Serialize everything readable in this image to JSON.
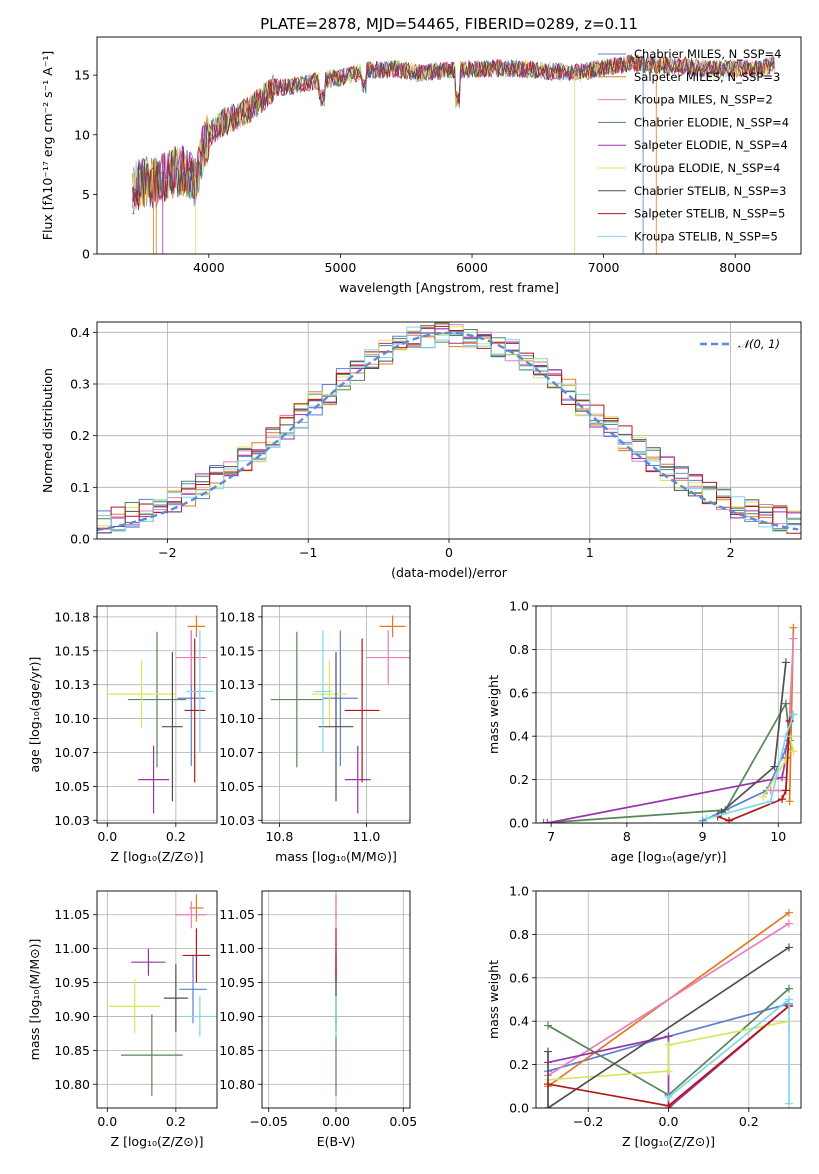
{
  "colors": [
    "#5b7fd6",
    "#e07b24",
    "#e87ec0",
    "#56865a",
    "#9933aa",
    "#d6e85a",
    "#505050",
    "#b31818",
    "#7fd8e6"
  ],
  "figure_title": "PLATE=2878, MJD=54465, FIBERID=0289, z=0.11",
  "chart_data": [
    {
      "type": "line",
      "id": "spectrum",
      "xlabel": "wavelength [Angstrom, rest frame]",
      "ylabel": "Flux [fλ10⁻¹⁷ erg cm⁻² s⁻¹ A⁻¹]",
      "xlim": [
        3150,
        8500
      ],
      "ylim": [
        0,
        18.2
      ],
      "xticks": [
        4000,
        5000,
        6000,
        7000,
        8000
      ],
      "yticks": [
        0,
        5,
        10,
        15
      ],
      "series": [
        {
          "name": "Chabrier MILES, N_SSP=4"
        },
        {
          "name": "Salpeter MILES, N_SSP=3"
        },
        {
          "name": "Kroupa MILES, N_SSP=2"
        },
        {
          "name": "Chabrier ELODIE, N_SSP=4"
        },
        {
          "name": "Salpeter ELODIE, N_SSP=4"
        },
        {
          "name": "Kroupa ELODIE, N_SSP=4"
        },
        {
          "name": "Chabrier STELIB, N_SSP=3"
        },
        {
          "name": "Salpeter STELIB, N_SSP=5"
        },
        {
          "name": "Kroupa STELIB, N_SSP=5"
        }
      ],
      "continuum": {
        "x": [
          3420,
          3500,
          3600,
          3700,
          3800,
          3900,
          3950,
          4000,
          4100,
          4200,
          4300,
          4400,
          4500,
          4600,
          4800,
          5000,
          5200,
          5400,
          5600,
          5800,
          6000,
          6200,
          6400,
          6600,
          6800,
          7000,
          7200,
          7400,
          7600,
          7800,
          8000,
          8200,
          8300
        ],
        "y": [
          5.5,
          6.0,
          6.0,
          6.8,
          7.0,
          6.0,
          8.5,
          10.0,
          11.0,
          11.5,
          12.0,
          13.0,
          14.0,
          14.0,
          14.5,
          14.8,
          15.4,
          15.5,
          15.2,
          15.4,
          15.5,
          15.6,
          15.5,
          15.3,
          15.2,
          15.6,
          16.0,
          15.8,
          15.8,
          15.5,
          15.6,
          15.5,
          16.0
        ]
      }
    },
    {
      "type": "line",
      "id": "residuals",
      "xlabel": "(data-model)/error",
      "ylabel": "Normed distribution",
      "xlim": [
        -2.5,
        2.5
      ],
      "ylim": [
        0,
        0.42
      ],
      "xticks": [
        -2,
        -1,
        0,
        1,
        2
      ],
      "yticks": [
        0.0,
        0.1,
        0.2,
        0.3,
        0.4
      ],
      "legend": "𝒩(0, 1)",
      "series_note": "9 step histograms following the normal curve"
    },
    {
      "type": "scatter",
      "id": "age-vs-Z",
      "xlabel": "Z [log₁₀(Z/Z⊙)]",
      "ylabel": "age  [log₁₀(age/yr)]",
      "xlim": [
        -0.03,
        0.32
      ],
      "ylim": [
        10.023,
        10.183
      ],
      "xticks": [
        0.0,
        0.2
      ],
      "yticks": [
        10.025,
        10.05,
        10.075,
        10.1,
        10.125,
        10.15,
        10.175
      ],
      "points": [
        {
          "c": 0,
          "x": 0.245,
          "xerr": 0.04,
          "y": 10.115,
          "yerr": 0.05
        },
        {
          "c": 1,
          "x": 0.26,
          "xerr": 0.025,
          "y": 10.168,
          "yerr": 0.008
        },
        {
          "c": 2,
          "x": 0.245,
          "xerr": 0.045,
          "y": 10.145,
          "yerr": 0.02
        },
        {
          "c": 3,
          "x": 0.145,
          "xerr": 0.085,
          "y": 10.114,
          "yerr": 0.05
        },
        {
          "c": 4,
          "x": 0.135,
          "xerr": 0.045,
          "y": 10.055,
          "yerr": 0.025
        },
        {
          "c": 5,
          "x": 0.1,
          "xerr": 0.1,
          "y": 10.118,
          "yerr": 0.025
        },
        {
          "c": 6,
          "x": 0.19,
          "xerr": 0.03,
          "y": 10.094,
          "yerr": 0.055
        },
        {
          "c": 7,
          "x": 0.255,
          "xerr": 0.03,
          "y": 10.106,
          "yerr": 0.053
        },
        {
          "c": 8,
          "x": 0.27,
          "xerr": 0.04,
          "y": 10.12,
          "yerr": 0.045
        }
      ]
    },
    {
      "type": "scatter",
      "id": "age-vs-mass",
      "xlabel": "mass [log₁₀(M/M⊙)]",
      "xlim": [
        10.76,
        11.1
      ],
      "ylim": [
        10.023,
        10.183
      ],
      "xticks": [
        10.8,
        11.0
      ],
      "yticks": [
        10.025,
        10.05,
        10.075,
        10.1,
        10.125,
        10.15,
        10.175
      ],
      "points": [
        {
          "c": 0,
          "x": 10.94,
          "xerr": 0.04,
          "y": 10.115,
          "yerr": 0.05
        },
        {
          "c": 1,
          "x": 11.06,
          "xerr": 0.03,
          "y": 10.168,
          "yerr": 0.008
        },
        {
          "c": 2,
          "x": 11.05,
          "xerr": 0.05,
          "y": 10.145,
          "yerr": 0.02
        },
        {
          "c": 3,
          "x": 10.84,
          "xerr": 0.06,
          "y": 10.114,
          "yerr": 0.05
        },
        {
          "c": 4,
          "x": 10.98,
          "xerr": 0.03,
          "y": 10.055,
          "yerr": 0.025
        },
        {
          "c": 5,
          "x": 10.915,
          "xerr": 0.04,
          "y": 10.118,
          "yerr": 0.025
        },
        {
          "c": 6,
          "x": 10.93,
          "xerr": 0.04,
          "y": 10.094,
          "yerr": 0.055
        },
        {
          "c": 7,
          "x": 10.99,
          "xerr": 0.04,
          "y": 10.106,
          "yerr": 0.053
        },
        {
          "c": 8,
          "x": 10.9,
          "xerr": 0.02,
          "y": 10.12,
          "yerr": 0.045
        }
      ]
    },
    {
      "type": "line",
      "id": "mass-weight-vs-age",
      "xlabel": "age  [log₁₀(age/yr)]",
      "ylabel": "mass weight",
      "xlim": [
        6.8,
        10.3
      ],
      "ylim": [
        0,
        1
      ],
      "xticks": [
        7,
        8,
        9,
        10
      ],
      "yticks": [
        0.0,
        0.2,
        0.4,
        0.6,
        0.8,
        1.0
      ],
      "series": [
        {
          "c": 0,
          "points": [
            [
              9.0,
              0.01
            ],
            [
              9.85,
              0.15
            ],
            [
              10.1,
              0.34
            ],
            [
              10.2,
              0.5
            ]
          ]
        },
        {
          "c": 1,
          "points": [
            [
              10.15,
              0.1
            ],
            [
              10.2,
              0.9
            ]
          ]
        },
        {
          "c": 2,
          "points": [
            [
              9.9,
              0.15
            ],
            [
              10.1,
              0.15
            ],
            [
              10.2,
              0.85
            ]
          ]
        },
        {
          "c": 3,
          "points": [
            [
              6.9,
              0.0
            ],
            [
              9.3,
              0.06
            ],
            [
              10.1,
              0.55
            ],
            [
              10.15,
              0.38
            ]
          ]
        },
        {
          "c": 4,
          "points": [
            [
              6.95,
              0.0
            ],
            [
              10.05,
              0.21
            ],
            [
              10.1,
              0.3
            ],
            [
              10.15,
              0.47
            ]
          ]
        },
        {
          "c": 5,
          "points": [
            [
              9.8,
              0.12
            ],
            [
              10.1,
              0.29
            ],
            [
              10.15,
              0.4
            ],
            [
              10.2,
              0.33
            ]
          ]
        },
        {
          "c": 6,
          "points": [
            [
              9.25,
              0.05
            ],
            [
              9.95,
              0.26
            ],
            [
              10.1,
              0.74
            ]
          ]
        },
        {
          "c": 7,
          "points": [
            [
              9.2,
              0.03
            ],
            [
              9.35,
              0.01
            ],
            [
              10.05,
              0.11
            ],
            [
              10.1,
              0.15
            ],
            [
              10.15,
              0.47
            ]
          ]
        },
        {
          "c": 8,
          "points": [
            [
              9.05,
              0.02
            ],
            [
              9.9,
              0.1
            ],
            [
              10.1,
              0.4
            ],
            [
              10.2,
              0.5
            ]
          ]
        }
      ]
    },
    {
      "type": "scatter",
      "id": "mass-vs-Z",
      "xlabel": "Z [log₁₀(Z/Z⊙)]",
      "ylabel": "mass [log₁₀(M/M⊙)]",
      "xlim": [
        -0.03,
        0.32
      ],
      "ylim": [
        10.765,
        11.085
      ],
      "xticks": [
        0.0,
        0.2
      ],
      "yticks": [
        10.8,
        10.85,
        10.9,
        10.95,
        11.0,
        11.05
      ],
      "points": [
        {
          "c": 0,
          "x": 0.25,
          "xerr": 0.04,
          "y": 10.94,
          "yerr": 0.05
        },
        {
          "c": 1,
          "x": 0.26,
          "xerr": 0.02,
          "y": 11.06,
          "yerr": 0.02
        },
        {
          "c": 2,
          "x": 0.245,
          "xerr": 0.045,
          "y": 11.05,
          "yerr": 0.02
        },
        {
          "c": 3,
          "x": 0.13,
          "xerr": 0.09,
          "y": 10.843,
          "yerr": 0.06
        },
        {
          "c": 4,
          "x": 0.12,
          "xerr": 0.05,
          "y": 10.98,
          "yerr": 0.02
        },
        {
          "c": 5,
          "x": 0.08,
          "xerr": 0.075,
          "y": 10.915,
          "yerr": 0.04
        },
        {
          "c": 6,
          "x": 0.2,
          "xerr": 0.035,
          "y": 10.927,
          "yerr": 0.05
        },
        {
          "c": 7,
          "x": 0.26,
          "xerr": 0.04,
          "y": 10.99,
          "yerr": 0.04
        },
        {
          "c": 8,
          "x": 0.27,
          "xerr": 0.04,
          "y": 10.9,
          "yerr": 0.03
        }
      ]
    },
    {
      "type": "scatter",
      "id": "mass-vs-EBV",
      "xlabel": "E(B-V)",
      "xlim": [
        -0.055,
        0.055
      ],
      "ylim": [
        10.765,
        11.085
      ],
      "xticks": [
        -0.05,
        0.0,
        0.05
      ],
      "yticks": [
        10.8,
        10.85,
        10.9,
        10.95,
        11.0,
        11.05
      ],
      "points": [
        {
          "c": 0,
          "x": 0.0,
          "xerr": 0.0,
          "y": 10.94,
          "yerr": 0.05
        },
        {
          "c": 1,
          "x": 0.0,
          "xerr": 0.0,
          "y": 11.06,
          "yerr": 0.02
        },
        {
          "c": 2,
          "x": 0.0,
          "xerr": 0.0,
          "y": 11.05,
          "yerr": 0.02
        },
        {
          "c": 3,
          "x": 0.0,
          "xerr": 0.0,
          "y": 10.843,
          "yerr": 0.06
        },
        {
          "c": 4,
          "x": 0.0,
          "xerr": 0.0,
          "y": 10.98,
          "yerr": 0.02
        },
        {
          "c": 5,
          "x": 0.0,
          "xerr": 0.0,
          "y": 10.915,
          "yerr": 0.04
        },
        {
          "c": 6,
          "x": 0.0,
          "xerr": 0.0,
          "y": 10.927,
          "yerr": 0.05
        },
        {
          "c": 7,
          "x": 0.0,
          "xerr": 0.0,
          "y": 10.99,
          "yerr": 0.04
        },
        {
          "c": 8,
          "x": 0.0,
          "xerr": 0.0,
          "y": 10.9,
          "yerr": 0.03
        }
      ]
    },
    {
      "type": "line",
      "id": "mass-weight-vs-Z",
      "xlabel": "Z [log₁₀(Z/Z⊙)]",
      "ylabel": "mass weight",
      "xlim": [
        -0.33,
        0.33
      ],
      "ylim": [
        0,
        1
      ],
      "xticks": [
        -0.2,
        0.0,
        0.2
      ],
      "yticks": [
        0.0,
        0.2,
        0.4,
        0.6,
        0.8,
        1.0
      ],
      "series": [
        {
          "c": 0,
          "points": [
            [
              -0.3,
              0.17
            ],
            [
              0.0,
              0.33
            ],
            [
              0.3,
              0.48
            ]
          ]
        },
        {
          "c": 1,
          "points": [
            [
              -0.3,
              0.1
            ],
            [
              0.3,
              0.9
            ]
          ]
        },
        {
          "c": 2,
          "points": [
            [
              -0.3,
              0.15
            ],
            [
              0.3,
              0.85
            ]
          ]
        },
        {
          "c": 3,
          "points": [
            [
              -0.3,
              0.38
            ],
            [
              0.0,
              0.06
            ],
            [
              0.3,
              0.55
            ]
          ]
        },
        {
          "c": 4,
          "points": [
            [
              -0.3,
              0.21
            ],
            [
              0.0,
              0.33
            ],
            [
              0.0,
              0.0
            ],
            [
              0.3,
              0.47
            ]
          ]
        },
        {
          "c": 5,
          "points": [
            [
              -0.3,
              0.13
            ],
            [
              0.0,
              0.17
            ],
            [
              0.0,
              0.29
            ],
            [
              0.3,
              0.4
            ]
          ]
        },
        {
          "c": 6,
          "points": [
            [
              -0.3,
              0.26
            ],
            [
              -0.3,
              0.0
            ],
            [
              0.3,
              0.74
            ]
          ]
        },
        {
          "c": 7,
          "points": [
            [
              -0.3,
              0.11
            ],
            [
              0.0,
              0.01
            ],
            [
              0.3,
              0.47
            ]
          ]
        },
        {
          "c": 8,
          "points": [
            [
              0.0,
              0.05
            ],
            [
              0.3,
              0.5
            ],
            [
              0.3,
              0.02
            ]
          ]
        }
      ]
    }
  ]
}
